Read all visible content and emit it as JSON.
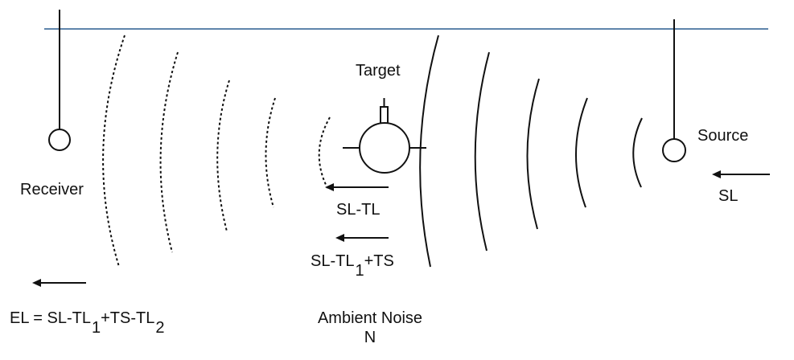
{
  "labels": {
    "target": "Target",
    "source": "Source",
    "receiver": "Receiver",
    "sl": "SL",
    "sl_tl": "SL-TL",
    "echo_prefix": "SL-TL",
    "echo_sub": "1",
    "echo_suffix": "+TS",
    "el_prefix": "EL = SL-TL",
    "el_sub1": "1",
    "el_mid": "+TS-TL",
    "el_sub2": "2",
    "ambient_line1": "Ambient Noise",
    "ambient_line2": "N"
  },
  "colors": {
    "surface": "#2a5d8f",
    "ink": "#111111",
    "background": "#ffffff"
  }
}
